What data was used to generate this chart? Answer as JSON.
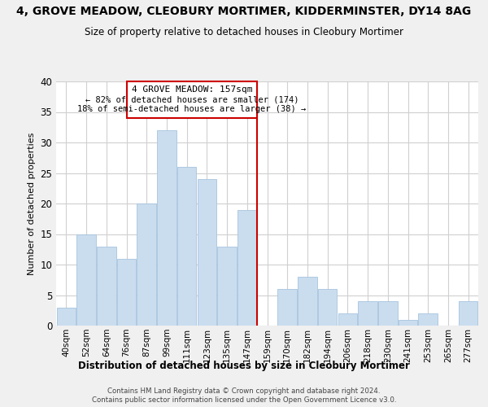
{
  "title1": "4, GROVE MEADOW, CLEOBURY MORTIMER, KIDDERMINSTER, DY14 8AG",
  "title2": "Size of property relative to detached houses in Cleobury Mortimer",
  "xlabel": "Distribution of detached houses by size in Cleobury Mortimer",
  "ylabel": "Number of detached properties",
  "categories": [
    "40sqm",
    "52sqm",
    "64sqm",
    "76sqm",
    "87sqm",
    "99sqm",
    "111sqm",
    "123sqm",
    "135sqm",
    "147sqm",
    "159sqm",
    "170sqm",
    "182sqm",
    "194sqm",
    "206sqm",
    "218sqm",
    "230sqm",
    "241sqm",
    "253sqm",
    "265sqm",
    "277sqm"
  ],
  "values": [
    3,
    15,
    13,
    11,
    20,
    32,
    26,
    24,
    13,
    19,
    0,
    6,
    8,
    6,
    2,
    4,
    4,
    1,
    2,
    0,
    4
  ],
  "bar_color": "#c9ddef",
  "bar_edge_color": "#a8c4de",
  "annotation_title": "4 GROVE MEADOW: 157sqm",
  "annotation_line1": "← 82% of detached houses are smaller (174)",
  "annotation_line2": "18% of semi-detached houses are larger (38) →",
  "vline_color": "#cc0000",
  "ann_box_color": "#cc0000",
  "ylim": [
    0,
    40
  ],
  "yticks": [
    0,
    5,
    10,
    15,
    20,
    25,
    30,
    35,
    40
  ],
  "footer1": "Contains HM Land Registry data © Crown copyright and database right 2024.",
  "footer2": "Contains public sector information licensed under the Open Government Licence v3.0.",
  "bg_color": "#f0f0f0",
  "plot_bg_color": "#ffffff",
  "grid_color": "#d0d0d0"
}
